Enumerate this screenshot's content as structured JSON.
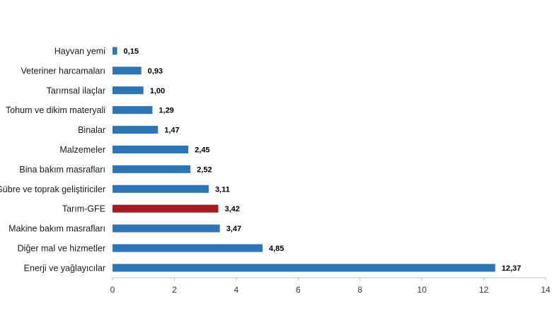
{
  "chart_data": {
    "type": "bar",
    "orientation": "horizontal",
    "categories": [
      "Hayvan yemi",
      "Veteriner harcamaları",
      "Tarımsal ilaçlar",
      "Tohum ve dikim materyali",
      "Binalar",
      "Malzemeler",
      "Bina bakım masrafları",
      "Gübre ve toprak geliştiriciler",
      "Tarım-GFE",
      "Makine bakım masrafları",
      "Diğer mal ve hizmetler",
      "Enerji  ve yağlayıcılar"
    ],
    "values": [
      0.15,
      0.93,
      1.0,
      1.29,
      1.47,
      2.45,
      2.52,
      3.11,
      3.42,
      3.47,
      4.85,
      12.37
    ],
    "value_labels": [
      "0,15",
      "0,93",
      "1,00",
      "1,29",
      "1,47",
      "2,45",
      "2,52",
      "3,11",
      "3,42",
      "3,47",
      "4,85",
      "12,37"
    ],
    "highlight_category": "Tarım-GFE",
    "xlim": [
      0,
      14
    ],
    "xticks": [
      0,
      2,
      4,
      6,
      8,
      10,
      12,
      14
    ],
    "title": "",
    "xlabel": "",
    "ylabel": "",
    "grid": false,
    "legend": "none",
    "colors": {
      "bar": "#2e75b6",
      "highlight": "#a51c24",
      "axis": "#bfbfbf"
    }
  }
}
